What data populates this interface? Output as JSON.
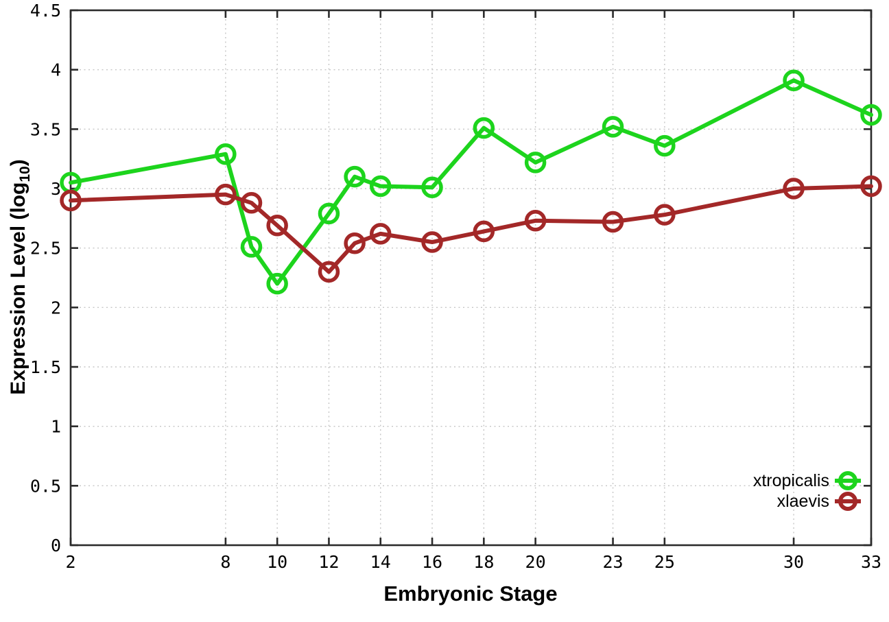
{
  "chart_data": {
    "type": "line",
    "title": "",
    "x": [
      2,
      8,
      9,
      10,
      12,
      13,
      14,
      16,
      18,
      20,
      23,
      25,
      30,
      33
    ],
    "series": [
      {
        "name": "xtropicalis",
        "color": "#1dd41d",
        "values": [
          3.05,
          3.29,
          2.51,
          2.2,
          2.79,
          3.1,
          3.02,
          3.01,
          3.51,
          3.22,
          3.52,
          3.36,
          3.91,
          3.62
        ]
      },
      {
        "name": "xlaevis",
        "color": "#a32828",
        "values": [
          2.9,
          2.95,
          2.88,
          2.69,
          2.3,
          2.54,
          2.62,
          2.55,
          2.64,
          2.73,
          2.72,
          2.78,
          3.0,
          3.02
        ]
      }
    ],
    "xlabel": "Embryonic Stage",
    "ylabel_prefix": "Expression Level (log",
    "ylabel_sub": "10",
    "ylabel_suffix": ")",
    "xlim": [
      2,
      33
    ],
    "ylim": [
      0,
      4.5
    ],
    "x_ticks": [
      2,
      8,
      10,
      12,
      14,
      16,
      18,
      20,
      23,
      25,
      30,
      33
    ],
    "y_ticks": [
      0,
      0.5,
      1,
      1.5,
      2,
      2.5,
      3,
      3.5,
      4,
      4.5
    ],
    "y_tick_labels": [
      "0",
      "0.5",
      "1",
      "1.5",
      "2",
      "2.5",
      "3",
      "3.5",
      "4",
      "4.5"
    ],
    "grid": true,
    "legend_position": "inside-bottom-right"
  },
  "styles": {
    "background": "#ffffff",
    "grid_color": "#c6c6c6",
    "axis_color": "#2b2b2b",
    "text_color": "#000000"
  }
}
